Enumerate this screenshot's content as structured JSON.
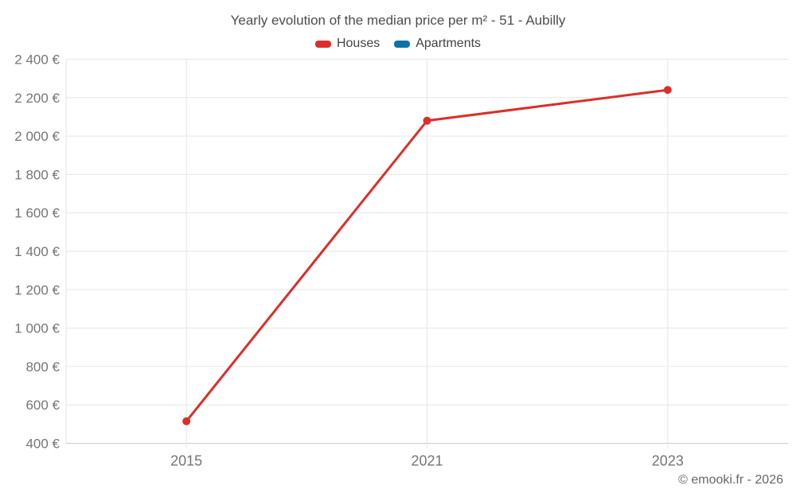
{
  "chart_data": {
    "type": "line",
    "title": "Yearly evolution of the median price per m² - 51 - Aubilly",
    "categories": [
      "2015",
      "2021",
      "2023"
    ],
    "series": [
      {
        "name": "Houses",
        "color": "#dc2e2b",
        "values": [
          515,
          2080,
          2240
        ]
      },
      {
        "name": "Apartments",
        "color": "#0e72a5",
        "values": [
          null,
          null,
          null
        ]
      }
    ],
    "ylim": [
      400,
      2400
    ],
    "ytick_step": 200,
    "ytick_labels": [
      "400 €",
      "600 €",
      "800 €",
      "1 000 €",
      "1 200 €",
      "1 400 €",
      "1 600 €",
      "1 800 €",
      "2 000 €",
      "2 200 €",
      "2 400 €"
    ],
    "xlabel": "",
    "ylabel": "",
    "grid": true,
    "legend_position": "top"
  },
  "footer": {
    "copyright": "© emooki.fr - 2026"
  },
  "colors": {
    "background": "#ffffff",
    "grid": "#e6e6e6",
    "axis_line": "#cccccc",
    "tick_label": "#757575",
    "title_text": "#4d4d4d",
    "legend_text": "#424242"
  }
}
